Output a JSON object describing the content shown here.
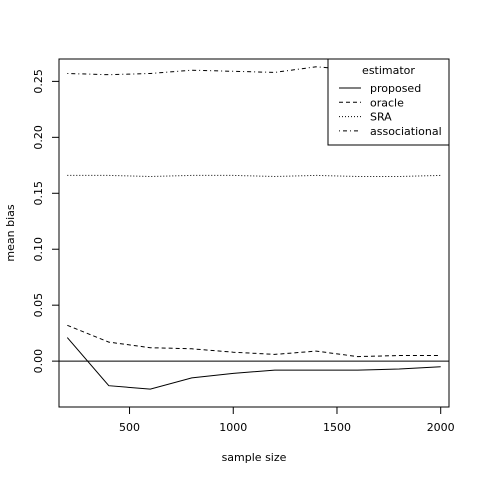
{
  "chart_data": {
    "type": "line",
    "title": "",
    "xlabel": "sample size",
    "ylabel": "mean bias",
    "xlim": [
      160,
      2040
    ],
    "ylim": [
      -0.041,
      0.27
    ],
    "x_ticks": [
      500,
      1000,
      1500,
      2000
    ],
    "x_tick_labels": [
      "500",
      "1000",
      "1500",
      "2000"
    ],
    "y_ticks": [
      0.0,
      0.05,
      0.1,
      0.15,
      0.2,
      0.25
    ],
    "y_tick_labels": [
      "0.00",
      "0.05",
      "0.10",
      "0.15",
      "0.20",
      "0.25"
    ],
    "x": [
      200,
      400,
      600,
      800,
      1000,
      1200,
      1400,
      1600,
      1800,
      2000
    ],
    "series": [
      {
        "name": "proposed",
        "line_style": "solid",
        "values": [
          0.021,
          -0.022,
          -0.025,
          -0.015,
          -0.011,
          -0.008,
          -0.008,
          -0.008,
          -0.007,
          -0.005
        ]
      },
      {
        "name": "oracle",
        "line_style": "dashed",
        "values": [
          0.032,
          0.017,
          0.012,
          0.011,
          0.008,
          0.006,
          0.009,
          0.004,
          0.005,
          0.005
        ]
      },
      {
        "name": "SRA",
        "line_style": "dotted",
        "values": [
          0.166,
          0.166,
          0.165,
          0.166,
          0.166,
          0.165,
          0.166,
          0.165,
          0.165,
          0.166
        ]
      },
      {
        "name": "associational",
        "line_style": "dotdash",
        "values": [
          0.257,
          0.256,
          0.257,
          0.26,
          0.259,
          0.258,
          0.263,
          0.26,
          0.259,
          0.258
        ]
      }
    ],
    "reference_line": {
      "y": 0
    },
    "grid": false,
    "legend": {
      "title": "estimator",
      "position": "top-right"
    }
  }
}
